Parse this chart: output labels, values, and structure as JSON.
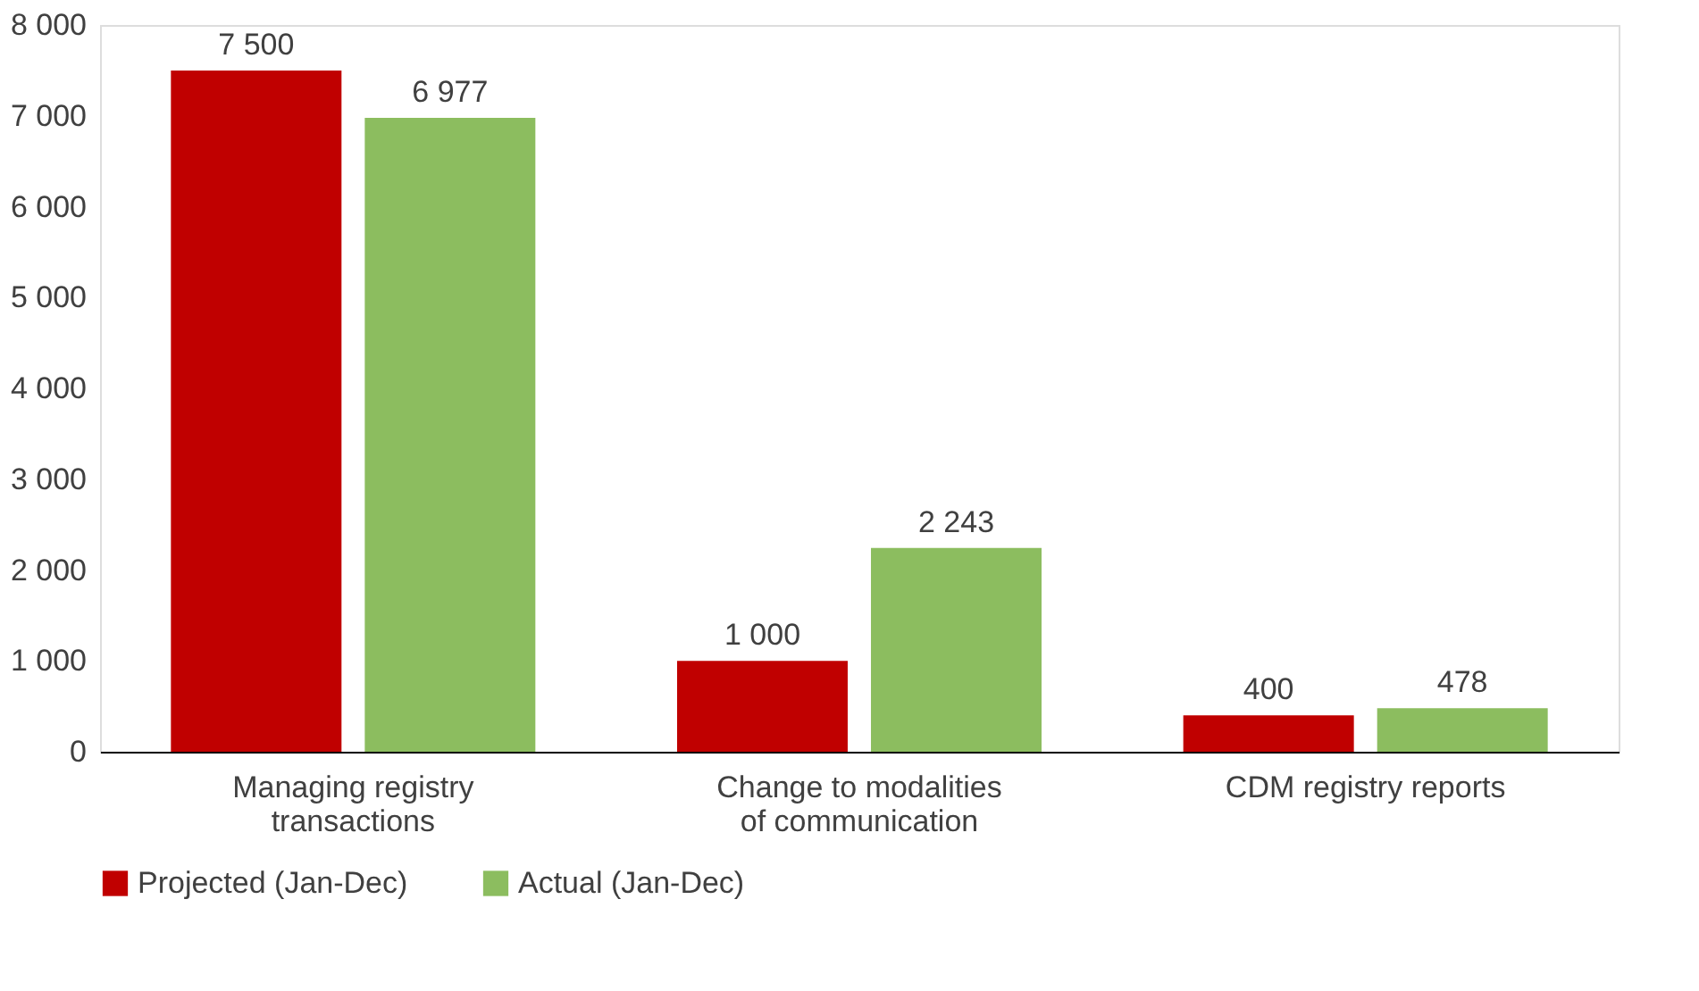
{
  "chart_data": {
    "type": "bar",
    "categories": [
      "Managing registry transactions",
      "Change to modalities of communication",
      "CDM registry reports"
    ],
    "series": [
      {
        "name": "Projected (Jan-Dec)",
        "color": "#c00000",
        "values": [
          7500,
          1000,
          400
        ],
        "value_labels": [
          "7 500",
          "1 000",
          "400"
        ]
      },
      {
        "name": "Actual (Jan-Dec)",
        "color": "#8cbd5f",
        "values": [
          6977,
          2243,
          478
        ],
        "value_labels": [
          "6 977",
          "2 243",
          "478"
        ]
      }
    ],
    "ylim": [
      0,
      8000
    ],
    "yticks": [
      0,
      {
        "value": 1000,
        "label": "1 000"
      },
      {
        "value": 2000,
        "label": "2 000"
      },
      {
        "value": 3000,
        "label": "3 000"
      },
      {
        "value": 4000,
        "label": "4 000"
      },
      {
        "value": 5000,
        "label": "5 000"
      },
      {
        "value": 6000,
        "label": "6 000"
      },
      {
        "value": 7000,
        "label": "7 000"
      },
      {
        "value": 8000,
        "label": "8 000"
      }
    ],
    "grid": false,
    "legend": "bottom"
  }
}
